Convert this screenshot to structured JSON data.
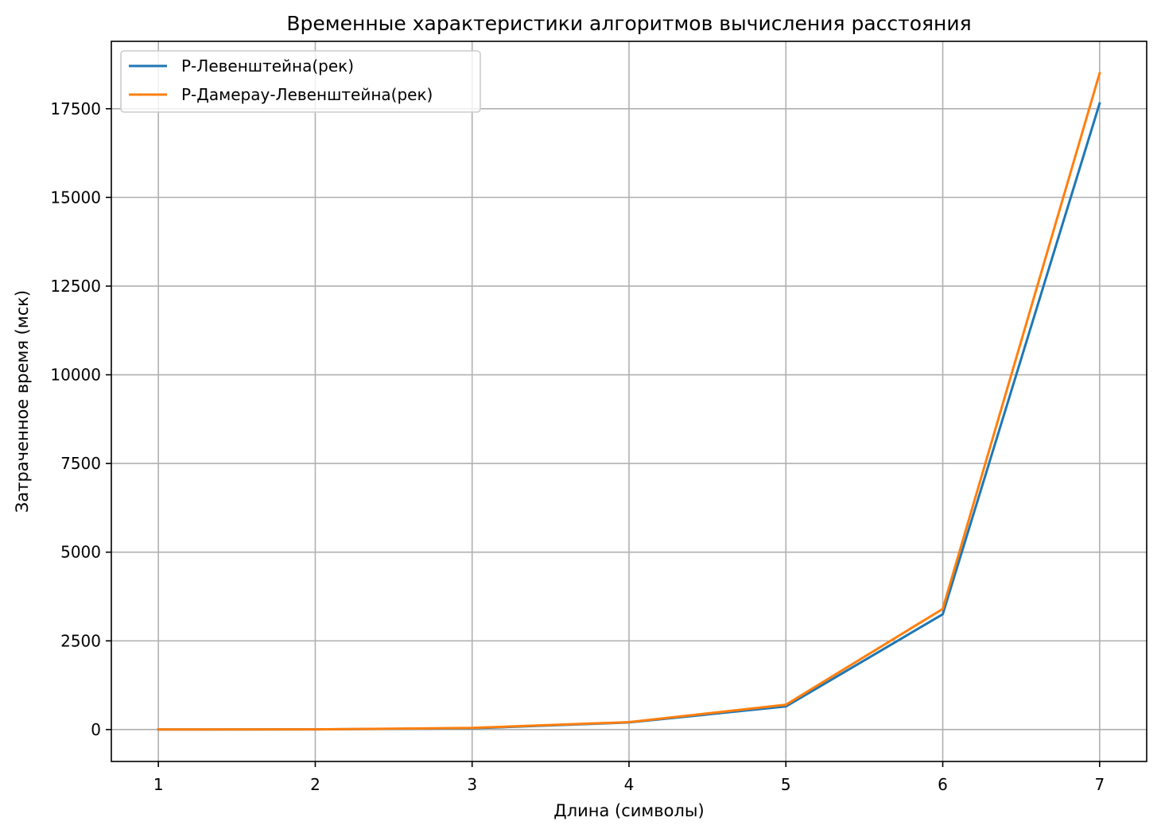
{
  "chart_data": {
    "type": "line",
    "title": "Временные характеристики алгоритмов вычисления расстояния",
    "xlabel": "Длина (символы)",
    "ylabel": "Затраченное время (мск)",
    "x": [
      1,
      2,
      3,
      4,
      5,
      6,
      7
    ],
    "xticks": [
      1,
      2,
      3,
      4,
      5,
      6,
      7
    ],
    "yticks": [
      0,
      2500,
      5000,
      7500,
      10000,
      12500,
      15000,
      17500
    ],
    "xlim": [
      0.7,
      7.3
    ],
    "ylim": [
      -900,
      19400
    ],
    "grid": true,
    "legend_position": "upper left",
    "series": [
      {
        "name": "Р-Левенштейна(рек)",
        "color": "#1f77b4",
        "values": [
          1,
          5,
          35,
          200,
          650,
          3250,
          17650
        ]
      },
      {
        "name": "Р-Дамерау-Левенштейна(рек)",
        "color": "#ff7f0e",
        "values": [
          1,
          6,
          45,
          210,
          700,
          3400,
          18500
        ]
      }
    ]
  }
}
